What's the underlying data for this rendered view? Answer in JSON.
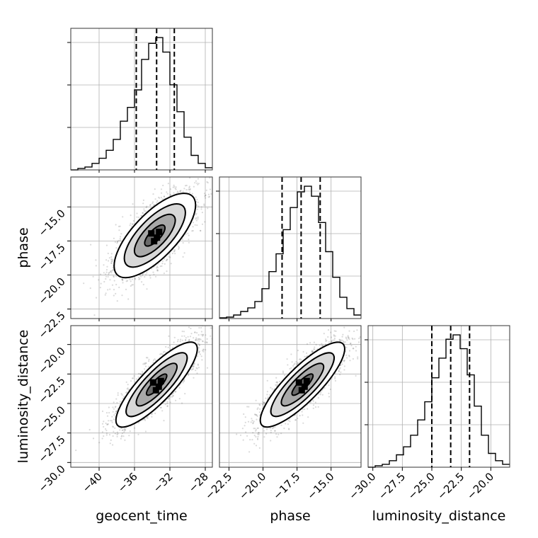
{
  "chart_data": {
    "type": "corner",
    "parameters": [
      "geocent_time",
      "phase",
      "luminosity_distance"
    ],
    "axis_labels": {
      "geocent_time": "geocent_time",
      "phase": "phase",
      "luminosity_distance": "luminosity_distance"
    },
    "ranges": {
      "geocent_time": [
        -43.2,
        -27.2
      ],
      "phase": [
        -23.2,
        -12.8
      ],
      "luminosity_distance": [
        -30.4,
        -18.4
      ]
    },
    "ticks": {
      "geocent_time": [
        -40,
        -36,
        -32,
        -28
      ],
      "phase": [
        -22.5,
        -20.0,
        -17.5,
        -15.0
      ],
      "luminosity_distance": [
        -30.0,
        -27.5,
        -25.0,
        -22.5,
        -20.0
      ]
    },
    "tick_labels": {
      "geocent_time": [
        "−40",
        "−36",
        "−32",
        "−28"
      ],
      "phase": [
        "−22.5",
        "−20.0",
        "−17.5",
        "−15.0"
      ],
      "luminosity_distance": [
        "−30.0",
        "−27.5",
        "−25.0",
        "−22.5",
        "−20.0"
      ]
    },
    "grid": true,
    "quantiles": {
      "geocent_time": [
        -35.8,
        -33.5,
        -31.5
      ],
      "phase": [
        -18.6,
        -17.2,
        -15.8
      ],
      "luminosity_distance": [
        -25.0,
        -23.4,
        -21.8
      ]
    },
    "histograms": {
      "geocent_time": {
        "edges": [
          -43.2,
          -42.4,
          -41.6,
          -40.8,
          -40.0,
          -39.2,
          -38.4,
          -37.6,
          -36.8,
          -36.0,
          -35.2,
          -34.4,
          -33.6,
          -32.8,
          -32.0,
          -31.2,
          -30.4,
          -29.6,
          -28.8,
          -28.0,
          -27.2
        ],
        "counts": [
          0,
          2,
          4,
          9,
          16,
          27,
          42,
          67,
          86,
          110,
          152,
          174,
          182,
          162,
          117,
          80,
          45,
          20,
          9,
          3
        ]
      },
      "phase": {
        "edges": [
          -23.2,
          -22.68,
          -22.16,
          -21.64,
          -21.12,
          -20.6,
          -20.08,
          -19.56,
          -19.04,
          -18.52,
          -18.0,
          -17.48,
          -16.96,
          -16.44,
          -15.92,
          -15.4,
          -14.88,
          -14.36,
          -13.84,
          -13.32,
          -12.8
        ],
        "counts": [
          1,
          2,
          5,
          10,
          15,
          24,
          42,
          66,
          91,
          125,
          156,
          178,
          186,
          172,
          135,
          94,
          58,
          30,
          14,
          5
        ]
      },
      "luminosity_distance": {
        "edges": [
          -30.4,
          -29.8,
          -29.2,
          -28.6,
          -28.0,
          -27.4,
          -26.8,
          -26.2,
          -25.6,
          -25.0,
          -24.4,
          -23.8,
          -23.2,
          -22.6,
          -22.0,
          -21.4,
          -20.8,
          -20.2,
          -19.6,
          -19.0,
          -18.4
        ],
        "counts": [
          0,
          2,
          4,
          9,
          17,
          28,
          44,
          65,
          90,
          123,
          150,
          176,
          182,
          163,
          127,
          84,
          44,
          19,
          9,
          4
        ]
      }
    },
    "panels_2d": [
      {
        "x": "geocent_time",
        "y": "phase",
        "mean": [
          -33.7,
          -17.1
        ],
        "sigma": [
          2.3,
          1.55
        ],
        "correlation": 0.72
      },
      {
        "x": "geocent_time",
        "y": "luminosity_distance",
        "mean": [
          -33.5,
          -23.4
        ],
        "sigma": [
          2.3,
          1.8
        ],
        "correlation": 0.84
      },
      {
        "x": "phase",
        "y": "luminosity_distance",
        "mean": [
          -17.1,
          -23.4
        ],
        "sigma": [
          1.55,
          1.8
        ],
        "correlation": 0.84
      }
    ],
    "contour_levels": [
      "0.5-sigma",
      "1-sigma",
      "1.5-sigma",
      "2-sigma"
    ]
  }
}
